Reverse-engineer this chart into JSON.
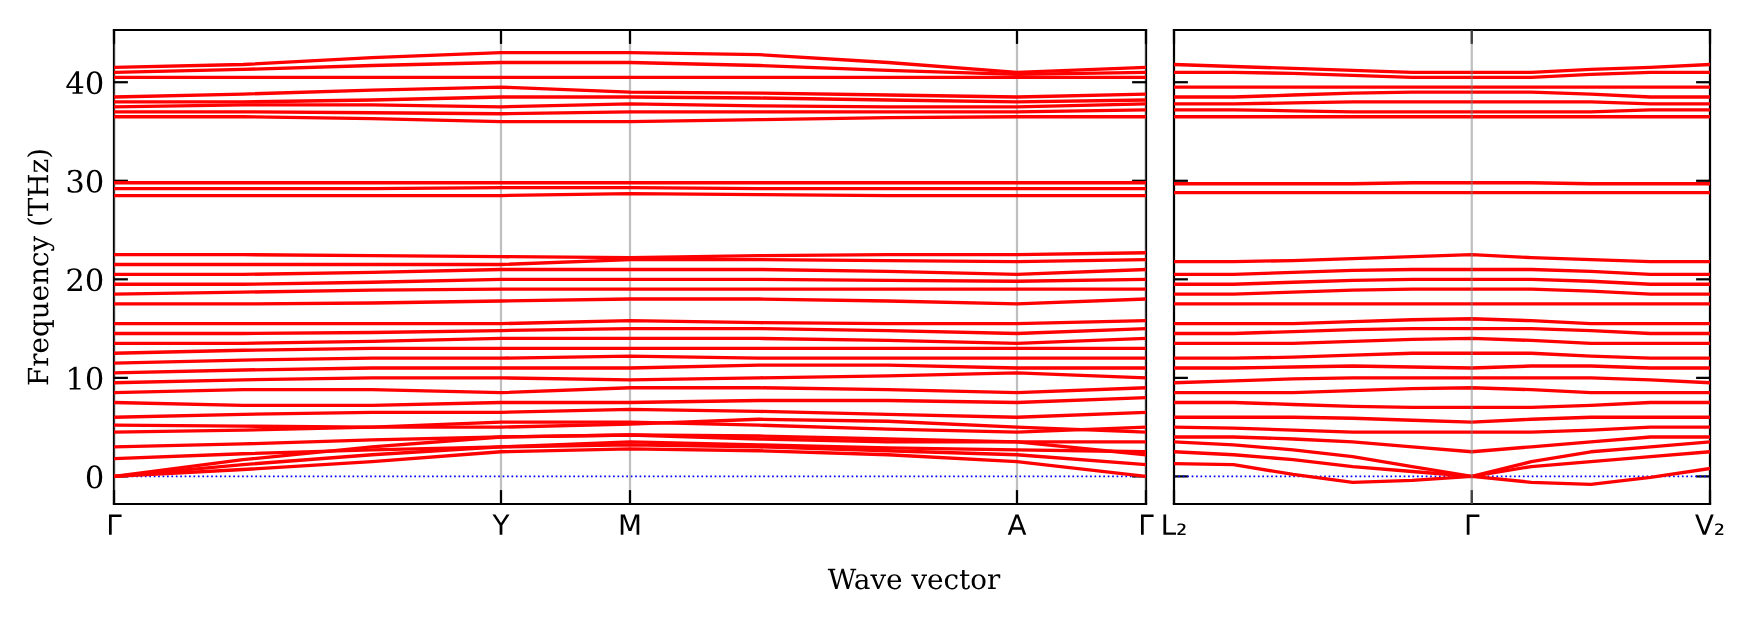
{
  "chart_data": [
    {
      "type": "line",
      "ylabel": "Frequency (THz)",
      "xlabel": "Wave vector",
      "ylim": [
        -2.8,
        45.3
      ],
      "categories": [
        "Γ",
        null,
        null,
        "Y",
        "M",
        null,
        null,
        "A",
        "Γ"
      ],
      "yticks": [
        0,
        10,
        20,
        30,
        40
      ],
      "grid": "x",
      "marker": "none",
      "line_style": "solid",
      "ref_lines": [
        {
          "axis": "y",
          "value": 0,
          "color": "#0000ff",
          "line_style": "dotted"
        }
      ],
      "series": [
        {
          "color": "#ff0000",
          "values": [
            0,
            0.7,
            1.5,
            2.5,
            2.8,
            2.6,
            2.2,
            1.5,
            0
          ]
        },
        {
          "color": "#ff0000",
          "values": [
            0,
            1.2,
            2.2,
            3.0,
            3.2,
            3.0,
            2.6,
            2.2,
            1.2
          ]
        },
        {
          "color": "#ff0000",
          "values": [
            0,
            1.7,
            3,
            4,
            4.2,
            3.8,
            3.5,
            3.5,
            2.2
          ]
        },
        {
          "color": "#ff0000",
          "values": [
            1.8,
            2.3,
            2.7,
            3,
            3.5,
            3.2,
            2.9,
            2.7,
            2.5
          ]
        },
        {
          "color": "#ff0000",
          "values": [
            3,
            3.3,
            3.7,
            4,
            4.2,
            4.1,
            3.8,
            3.5,
            3.5
          ]
        },
        {
          "color": "#ff0000",
          "values": [
            4.5,
            4.7,
            5,
            5.5,
            5.5,
            5.2,
            4.8,
            4.5,
            5
          ]
        },
        {
          "color": "#ff0000",
          "values": [
            5.2,
            5.1,
            5,
            5,
            5.3,
            5.8,
            5.6,
            5,
            4.5
          ]
        },
        {
          "color": "#ff0000",
          "values": [
            6,
            6.3,
            6.5,
            6.5,
            6.8,
            6.6,
            6.3,
            6,
            6.5
          ]
        },
        {
          "color": "#ff0000",
          "values": [
            7.5,
            7.2,
            7.2,
            7.5,
            7.5,
            7.7,
            7.7,
            7.5,
            8
          ]
        },
        {
          "color": "#ff0000",
          "values": [
            8.5,
            8.8,
            8.8,
            8.5,
            9,
            9,
            8.8,
            8.5,
            9
          ]
        },
        {
          "color": "#ff0000",
          "values": [
            9.5,
            9.8,
            10,
            10,
            9.8,
            10,
            10.2,
            10.5,
            10
          ]
        },
        {
          "color": "#ff0000",
          "values": [
            10.5,
            10.8,
            11,
            11,
            11,
            11.3,
            11.3,
            11,
            11
          ]
        },
        {
          "color": "#ff0000",
          "values": [
            11.5,
            11.8,
            12,
            12,
            12.2,
            12,
            12,
            12,
            12
          ]
        },
        {
          "color": "#ff0000",
          "values": [
            12.5,
            12.8,
            13,
            13,
            13,
            13,
            13,
            13,
            13
          ]
        },
        {
          "color": "#ff0000",
          "values": [
            13.5,
            13.5,
            13.7,
            14,
            14,
            14,
            13.8,
            13.5,
            14
          ]
        },
        {
          "color": "#ff0000",
          "values": [
            14.5,
            14.5,
            14.6,
            14.8,
            15,
            15,
            14.8,
            14.5,
            15
          ]
        },
        {
          "color": "#ff0000",
          "values": [
            15.5,
            15.5,
            15.5,
            15.5,
            15.8,
            15.6,
            15.5,
            15.5,
            15.8
          ]
        },
        {
          "color": "#ff0000",
          "values": [
            17.5,
            17.5,
            17.6,
            17.8,
            18,
            18,
            17.8,
            17.5,
            18
          ]
        },
        {
          "color": "#ff0000",
          "values": [
            18.5,
            18.7,
            18.9,
            19,
            19,
            19,
            19,
            19,
            19
          ]
        },
        {
          "color": "#ff0000",
          "values": [
            19.5,
            19.5,
            19.7,
            20,
            20,
            20,
            19.9,
            19.8,
            20
          ]
        },
        {
          "color": "#ff0000",
          "values": [
            20.5,
            20.5,
            20.7,
            21,
            21,
            21,
            20.8,
            20.5,
            21
          ]
        },
        {
          "color": "#ff0000",
          "values": [
            21.5,
            21.5,
            21.5,
            21.5,
            22,
            22,
            21.9,
            21.8,
            22
          ]
        },
        {
          "color": "#ff0000",
          "values": [
            22.5,
            22.5,
            22.4,
            22.3,
            22.2,
            22.4,
            22.5,
            22.5,
            22.7
          ]
        },
        {
          "color": "#ff0000",
          "values": [
            28.5,
            28.5,
            28.5,
            28.5,
            28.7,
            28.6,
            28.5,
            28.5,
            28.5
          ]
        },
        {
          "color": "#ff0000",
          "values": [
            29.2,
            29.2,
            29.2,
            29.3,
            29.3,
            29.2,
            29.2,
            29.2,
            29.2
          ]
        },
        {
          "color": "#ff0000",
          "values": [
            29.8,
            29.8,
            29.8,
            29.8,
            29.8,
            29.8,
            29.8,
            29.8,
            29.8
          ]
        },
        {
          "color": "#ff0000",
          "values": [
            36.5,
            36.5,
            36.3,
            36,
            36,
            36.2,
            36.4,
            36.5,
            36.5
          ]
        },
        {
          "color": "#ff0000",
          "values": [
            37,
            37,
            36.9,
            36.8,
            37,
            37,
            37,
            37,
            37.2
          ]
        },
        {
          "color": "#ff0000",
          "values": [
            37.5,
            37.7,
            37.7,
            37.5,
            37.8,
            37.6,
            37.5,
            37.5,
            37.8
          ]
        },
        {
          "color": "#ff0000",
          "values": [
            38,
            38,
            38.2,
            38.5,
            38.5,
            38.4,
            38.2,
            38,
            38.2
          ]
        },
        {
          "color": "#ff0000",
          "values": [
            38.5,
            38.8,
            39.2,
            39.5,
            39,
            38.9,
            38.7,
            38.5,
            38.8
          ]
        },
        {
          "color": "#ff0000",
          "values": [
            40.5,
            40.5,
            40.5,
            40.5,
            40.5,
            40.5,
            40.5,
            40.5,
            40.5
          ]
        },
        {
          "color": "#ff0000",
          "values": [
            41,
            41.3,
            41.7,
            42,
            42,
            41.7,
            41.2,
            40.8,
            41
          ]
        },
        {
          "color": "#ff0000",
          "values": [
            41.5,
            41.8,
            42.5,
            43,
            43,
            42.8,
            42,
            41,
            41.5
          ]
        }
      ]
    },
    {
      "type": "line",
      "ylim": [
        -2.8,
        45.3
      ],
      "tick_labels": "x",
      "categories": [
        "L₂",
        null,
        null,
        null,
        null,
        "Γ",
        null,
        null,
        null,
        "V₂"
      ],
      "yticks": [
        0,
        10,
        20,
        30,
        40
      ],
      "marker": "none",
      "line_style": "solid",
      "ref_lines": [
        {
          "axis": "y",
          "value": 0,
          "color": "#0000ff",
          "line_style": "dotted"
        },
        {
          "axis": "x",
          "value": "Γ",
          "color": "#808080",
          "line_style": "solid"
        }
      ],
      "series": [
        {
          "color": "#ff0000",
          "values": [
            1.3,
            1.2,
            0.2,
            -0.6,
            -0.4,
            0,
            -0.6,
            -0.8,
            -0.1,
            0.8
          ]
        },
        {
          "color": "#ff0000",
          "values": [
            2.5,
            2.2,
            1.7,
            1.0,
            0.5,
            0,
            1,
            1.5,
            2,
            2.5
          ]
        },
        {
          "color": "#ff0000",
          "values": [
            3.5,
            3.2,
            2.7,
            2,
            1,
            0,
            1.5,
            2.5,
            3,
            3.5
          ]
        },
        {
          "color": "#ff0000",
          "values": [
            4,
            4,
            3.8,
            3.5,
            3,
            2.5,
            3,
            3.5,
            4,
            4
          ]
        },
        {
          "color": "#ff0000",
          "values": [
            5,
            4.9,
            4.7,
            4.5,
            4.5,
            4.5,
            4.5,
            4.7,
            5,
            5
          ]
        },
        {
          "color": "#ff0000",
          "values": [
            6,
            6,
            6,
            5.9,
            5.7,
            5.5,
            5.8,
            6,
            6,
            6
          ]
        },
        {
          "color": "#ff0000",
          "values": [
            7.5,
            7.5,
            7.3,
            7.1,
            7,
            7,
            7,
            7.2,
            7.5,
            7.5
          ]
        },
        {
          "color": "#ff0000",
          "values": [
            8.5,
            8.5,
            8.5,
            8.7,
            8.9,
            9,
            8.8,
            8.5,
            8.5,
            8.5
          ]
        },
        {
          "color": "#ff0000",
          "values": [
            9.5,
            9.7,
            9.9,
            10,
            10,
            10,
            10,
            10,
            9.8,
            9.5
          ]
        },
        {
          "color": "#ff0000",
          "values": [
            11,
            11,
            11.1,
            11.2,
            11.1,
            11,
            11.2,
            11.2,
            11,
            11
          ]
        },
        {
          "color": "#ff0000",
          "values": [
            12,
            12,
            12.1,
            12.3,
            12.5,
            12.5,
            12.5,
            12.2,
            12,
            12
          ]
        },
        {
          "color": "#ff0000",
          "values": [
            13.5,
            13.5,
            13.5,
            13.7,
            13.9,
            14,
            13.8,
            13.5,
            13.5,
            13.5
          ]
        },
        {
          "color": "#ff0000",
          "values": [
            14.5,
            14.5,
            14.7,
            14.9,
            15,
            15,
            15,
            14.8,
            14.5,
            14.5
          ]
        },
        {
          "color": "#ff0000",
          "values": [
            15.5,
            15.5,
            15.5,
            15.7,
            15.9,
            16,
            15.8,
            15.5,
            15.5,
            15.5
          ]
        },
        {
          "color": "#ff0000",
          "values": [
            17.5,
            17.5,
            17.5,
            17.5,
            17.5,
            17.5,
            17.5,
            17.5,
            17.5,
            17.5
          ]
        },
        {
          "color": "#ff0000",
          "values": [
            18.5,
            18.5,
            18.7,
            18.9,
            19,
            19,
            19,
            18.8,
            18.5,
            18.5
          ]
        },
        {
          "color": "#ff0000",
          "values": [
            19.5,
            19.5,
            19.7,
            19.9,
            20,
            20,
            20,
            19.8,
            19.5,
            19.5
          ]
        },
        {
          "color": "#ff0000",
          "values": [
            20.5,
            20.5,
            20.7,
            20.9,
            21,
            21,
            21,
            20.8,
            20.5,
            20.5
          ]
        },
        {
          "color": "#ff0000",
          "values": [
            21.8,
            21.8,
            21.9,
            22.1,
            22.3,
            22.5,
            22.2,
            22,
            21.8,
            21.8
          ]
        },
        {
          "color": "#ff0000",
          "values": [
            28.8,
            28.8,
            28.8,
            28.8,
            28.8,
            28.8,
            28.8,
            28.8,
            28.8,
            28.8
          ]
        },
        {
          "color": "#ff0000",
          "values": [
            29.7,
            29.7,
            29.7,
            29.7,
            29.8,
            29.8,
            29.8,
            29.7,
            29.7,
            29.7
          ]
        },
        {
          "color": "#ff0000",
          "values": [
            36.5,
            36.5,
            36.5,
            36.5,
            36.5,
            36.5,
            36.5,
            36.5,
            36.5,
            36.5
          ]
        },
        {
          "color": "#ff0000",
          "values": [
            37.2,
            37.2,
            37.1,
            37,
            37,
            37,
            37,
            37,
            37.2,
            37.2
          ]
        },
        {
          "color": "#ff0000",
          "values": [
            37.8,
            37.8,
            37.9,
            38,
            38,
            38,
            38,
            38,
            37.8,
            37.8
          ]
        },
        {
          "color": "#ff0000",
          "values": [
            38.5,
            38.5,
            38.7,
            38.9,
            39,
            39,
            39,
            38.8,
            38.5,
            38.5
          ]
        },
        {
          "color": "#ff0000",
          "values": [
            39.5,
            39.5,
            39.5,
            39.5,
            39.5,
            39.5,
            39.5,
            39.5,
            39.5,
            39.5
          ]
        },
        {
          "color": "#ff0000",
          "values": [
            41,
            41,
            40.9,
            40.7,
            40.5,
            40.5,
            40.5,
            40.8,
            41,
            41
          ]
        },
        {
          "color": "#ff0000",
          "values": [
            41.8,
            41.6,
            41.4,
            41.2,
            41,
            41,
            41,
            41.3,
            41.5,
            41.8
          ]
        }
      ]
    }
  ]
}
